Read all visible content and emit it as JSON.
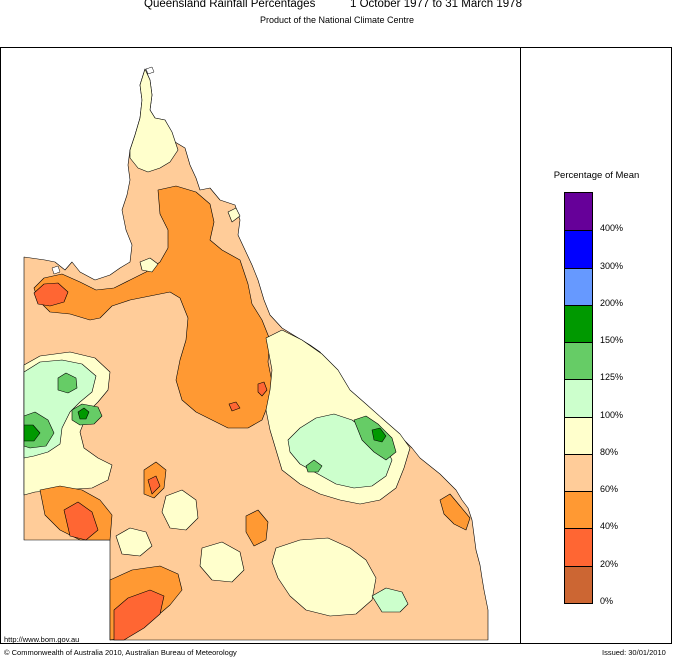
{
  "title_left": "Queensland Rainfall Percentages",
  "title_right": "1 October 1977 to 31 March 1978",
  "subtitle": "Product of the National Climate Centre",
  "legend": {
    "title": "Percentage of Mean",
    "bands": [
      {
        "color": "#660099"
      },
      {
        "color": "#0000ff"
      },
      {
        "color": "#6699ff"
      },
      {
        "color": "#009900"
      },
      {
        "color": "#66cc66"
      },
      {
        "color": "#ccffcc"
      },
      {
        "color": "#ffffcc"
      },
      {
        "color": "#ffcc99"
      },
      {
        "color": "#ff9933"
      },
      {
        "color": "#ff6633"
      },
      {
        "color": "#cc6633"
      }
    ],
    "labels": [
      "400%",
      "300%",
      "200%",
      "150%",
      "125%",
      "100%",
      "80%",
      "60%",
      "40%",
      "20%",
      "0%"
    ]
  },
  "footer": {
    "url": "http://www.bom.gov.au",
    "copyright": "© Commonwealth of Australia 2010, Australian Bureau of Meteorology",
    "issued": "Issued: 30/01/2010"
  }
}
